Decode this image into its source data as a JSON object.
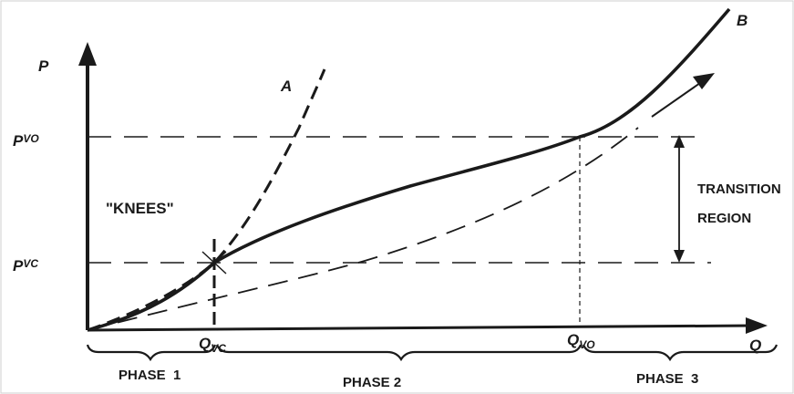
{
  "axes": {
    "y_label": "P",
    "x_label": "Q"
  },
  "ticks": {
    "pvo": {
      "main": "P",
      "sub": "VO"
    },
    "pvc": {
      "main": "P",
      "sub": "VC"
    },
    "qvc": {
      "main": "Q",
      "sub": "VC"
    },
    "qvo": {
      "main": "Q",
      "sub": "VO"
    }
  },
  "curves": {
    "a_label": "A",
    "b_label": "B"
  },
  "annotations": {
    "knees": "\"KNEES\"",
    "transition_line1": "TRANSITION",
    "transition_line2": "REGION"
  },
  "phases": [
    "PHASE  1",
    "PHASE 2",
    "PHASE  3"
  ],
  "colors": {
    "ink": "#1a1a1a",
    "background": "#ffffff"
  }
}
